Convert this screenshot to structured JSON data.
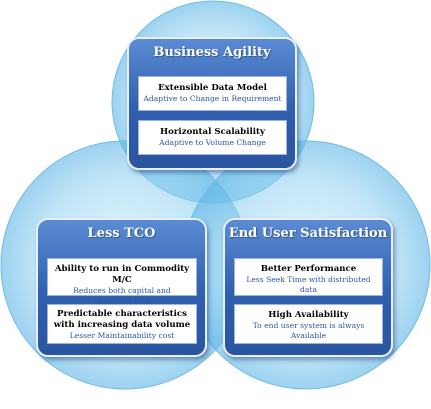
{
  "panels": {
    "business_agility": {
      "title": "Business Agility",
      "cards": [
        {
          "title": "Extensible Data Model",
          "subtitle": "Adaptive to Change in Requirement"
        },
        {
          "title": "Horizontal Scalability",
          "subtitle": "Adaptive to Volume Change"
        }
      ]
    },
    "less_tco": {
      "title": "Less TCO",
      "cards": [
        {
          "title": "Ability to run in Commodity M/C",
          "subtitle": "Reduces both capital and operating cost"
        },
        {
          "title": "Predictable characteristics with increasing data volume",
          "subtitle": "Lesser Maintainability cost"
        }
      ]
    },
    "end_user_satisfaction": {
      "title": "End User Satisfaction",
      "cards": [
        {
          "title": "Better Performance",
          "subtitle": "Less Seek Time with distributed data"
        },
        {
          "title": "High Availability",
          "subtitle": "To end user system is always Available"
        }
      ]
    }
  },
  "colors": {
    "circle_fill": "#7fc8ee",
    "panel_fill": "#2f5fae",
    "subtitle_text": "#2c57a3"
  }
}
